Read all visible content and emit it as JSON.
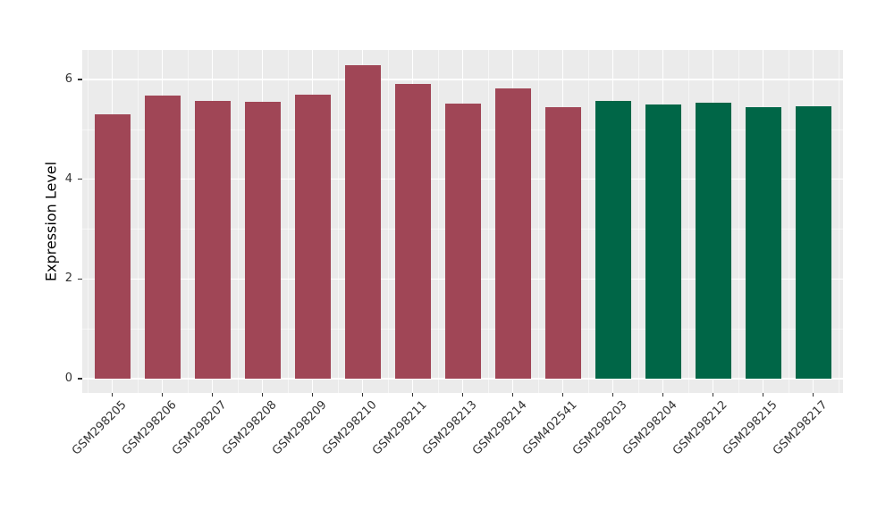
{
  "chart_data": {
    "type": "bar",
    "title": "",
    "xlabel": "",
    "ylabel": "Expression Level",
    "categories": [
      "GSM298205",
      "GSM298206",
      "GSM298207",
      "GSM298208",
      "GSM298209",
      "GSM298210",
      "GSM298211",
      "GSM298213",
      "GSM298214",
      "GSM402541",
      "GSM298203",
      "GSM298204",
      "GSM298212",
      "GSM298215",
      "GSM298217"
    ],
    "values": [
      5.3,
      5.68,
      5.57,
      5.55,
      5.69,
      6.28,
      5.91,
      5.52,
      5.82,
      5.44,
      5.57,
      5.5,
      5.53,
      5.44,
      5.46
    ],
    "groups": [
      "g1",
      "g1",
      "g1",
      "g1",
      "g1",
      "g1",
      "g1",
      "g1",
      "g1",
      "g1",
      "g2",
      "g2",
      "g2",
      "g2",
      "g2"
    ],
    "group_colors": {
      "g1": "#A04656",
      "g2": "#006647"
    },
    "yticks": [
      0,
      2,
      4,
      6
    ],
    "yminor": [
      1,
      3,
      5
    ],
    "ylim": [
      -0.29,
      6.59
    ],
    "legend_position": "none",
    "grid": "on",
    "panel_bg": "#EBEBEB",
    "grid_color": "#FFFFFF",
    "axis_text_color": "#333333",
    "axis_title_color": "#000000"
  }
}
